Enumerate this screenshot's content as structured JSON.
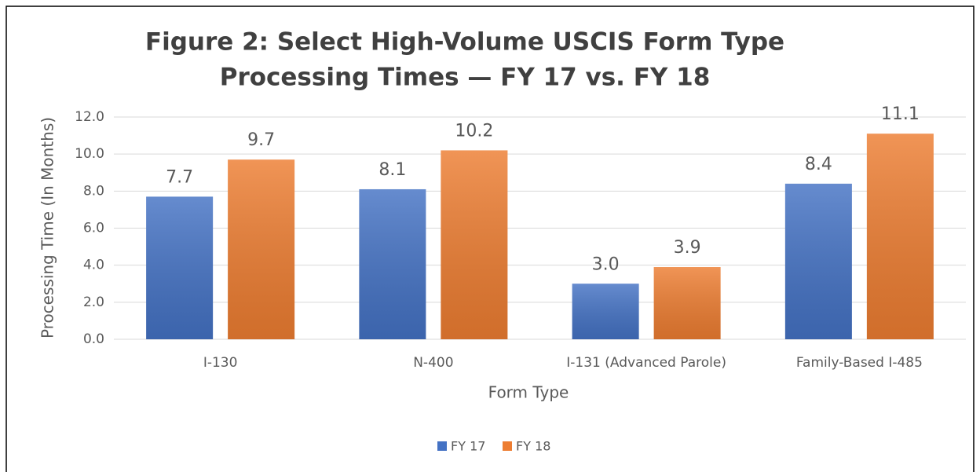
{
  "chart_data": {
    "type": "bar",
    "title": [
      "Figure 2: Select High-Volume USCIS Form Type",
      "Processing Times — FY 17 vs. FY 18"
    ],
    "x_label": "Form Type",
    "y_label": "Processing Time (In Months)",
    "categories": [
      "I-130",
      "N-400",
      "I-131 (Advanced Parole)",
      "Family-Based I-485"
    ],
    "series": [
      {
        "name": "FY 17",
        "color": "#4472c4",
        "values": [
          7.7,
          8.1,
          3.0,
          8.4
        ],
        "value_labels": [
          "7.7",
          "8.1",
          "3.0",
          "8.4"
        ]
      },
      {
        "name": "FY 18",
        "color": "#ed7d31",
        "values": [
          9.7,
          10.2,
          3.9,
          11.1
        ]
      }
    ],
    "ylim": [
      0,
      12
    ],
    "yticks": [
      {
        "value": 0,
        "label": "0.0"
      },
      {
        "value": 2,
        "label": "2.0"
      },
      {
        "value": 4,
        "label": "4.0"
      },
      {
        "value": 6,
        "label": "6.0"
      },
      {
        "value": 8,
        "label": "8.0"
      },
      {
        "value": 10,
        "label": "10.0"
      },
      {
        "value": 12,
        "label": "12.0"
      }
    ],
    "grid": true,
    "legend": "bottom"
  }
}
